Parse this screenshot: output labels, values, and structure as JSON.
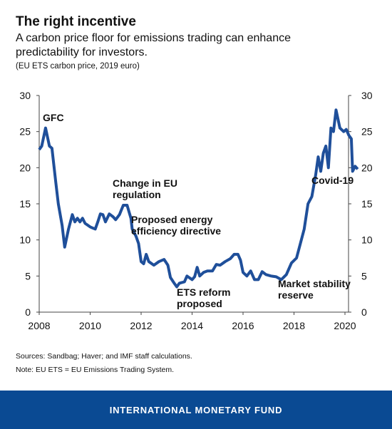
{
  "chart_data": {
    "type": "line",
    "title": "The right incentive",
    "subtitle": [
      "A carbon price floor for emissions trading can enhance",
      "predictability for investors."
    ],
    "note": "(EU ETS carbon price, 2019 euro)",
    "sources": [
      "Sources: Sandbag; Haver; and IMF staff calculations.",
      "Note: EU ETS = EU Emissions Trading System."
    ],
    "footer": "INTERNATIONAL MONETARY FUND",
    "annotations": [
      [
        "GFC"
      ],
      [
        "Change in EU",
        "regulation"
      ],
      [
        "Proposed energy",
        "efficiency directive"
      ],
      [
        "ETS reform",
        "proposed"
      ],
      [
        "Market stability",
        "reserve"
      ],
      [
        "Covid-19"
      ]
    ],
    "x": [
      2008.0,
      2008.1,
      2008.25,
      2008.4,
      2008.5,
      2008.65,
      2008.75,
      2008.9,
      2009.0,
      2009.15,
      2009.3,
      2009.4,
      2009.5,
      2009.6,
      2009.7,
      2009.8,
      2010.0,
      2010.2,
      2010.3,
      2010.4,
      2010.5,
      2010.6,
      2010.75,
      2010.9,
      2011.0,
      2011.15,
      2011.3,
      2011.45,
      2011.6,
      2011.65,
      2011.8,
      2011.9,
      2012.0,
      2012.1,
      2012.2,
      2012.3,
      2012.5,
      2012.7,
      2012.9,
      2013.05,
      2013.15,
      2013.3,
      2013.4,
      2013.5,
      2013.7,
      2013.8,
      2014.0,
      2014.1,
      2014.2,
      2014.3,
      2014.45,
      2014.6,
      2014.8,
      2014.95,
      2015.1,
      2015.3,
      2015.5,
      2015.65,
      2015.8,
      2015.9,
      2016.0,
      2016.15,
      2016.3,
      2016.45,
      2016.6,
      2016.75,
      2016.9,
      2017.1,
      2017.3,
      2017.5,
      2017.7,
      2017.9,
      2018.1,
      2018.25,
      2018.4,
      2018.55,
      2018.7,
      2018.85,
      2018.95,
      2019.05,
      2019.15,
      2019.25,
      2019.35,
      2019.45,
      2019.55,
      2019.65,
      2019.8,
      2019.95,
      2020.05,
      2020.15,
      2020.25,
      2020.3,
      2020.4,
      2020.5
    ],
    "series": [
      {
        "name": "EU ETS carbon price",
        "color": "#1f4f9a",
        "values": [
          22.5,
          23,
          25.5,
          23,
          22.7,
          18,
          15,
          12,
          9,
          11.5,
          13.5,
          12.5,
          13,
          12.5,
          13,
          12.3,
          11.8,
          11.5,
          12.5,
          13.6,
          13.5,
          12.5,
          13.6,
          13.2,
          12.8,
          13.5,
          14.8,
          14.8,
          13,
          11.5,
          10.5,
          9.5,
          7,
          6.7,
          8,
          7,
          6.5,
          7,
          7.3,
          6.5,
          4.8,
          4,
          3.5,
          4,
          4.2,
          5,
          4.5,
          4.9,
          6.2,
          5,
          5.5,
          5.7,
          5.7,
          6.6,
          6.5,
          7,
          7.4,
          8,
          8,
          7.2,
          5.5,
          5,
          5.7,
          4.5,
          4.5,
          5.6,
          5.2,
          5,
          4.9,
          4.5,
          5.2,
          6.8,
          7.5,
          9.5,
          11.5,
          15,
          16,
          19,
          21.5,
          19.5,
          22,
          23,
          20,
          25.5,
          25,
          28,
          25.5,
          25,
          25.3,
          24.5,
          24,
          19.5,
          20.2,
          19.8
        ]
      }
    ],
    "xlim": [
      2008,
      2020
    ],
    "xticks": [
      2008,
      2010,
      2012,
      2014,
      2016,
      2018,
      2020
    ],
    "ylim": [
      0,
      30
    ],
    "yticks": [
      0,
      5,
      10,
      15,
      20,
      25,
      30
    ],
    "y2lim": [
      0,
      30
    ],
    "y2ticks": [
      0,
      5,
      10,
      15,
      20,
      25,
      30
    ]
  }
}
